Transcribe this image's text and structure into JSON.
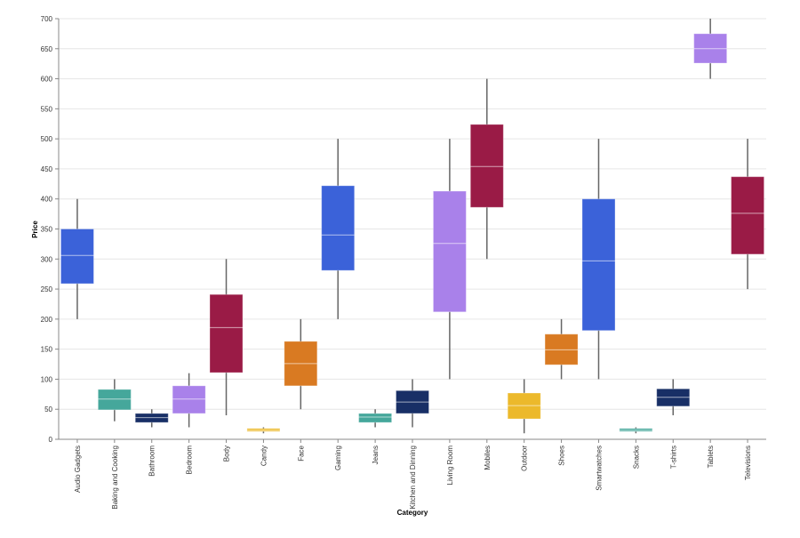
{
  "chart_data": {
    "type": "boxplot",
    "xlabel": "Category",
    "ylabel": "Price",
    "ylim": [
      0,
      700
    ],
    "yticks": [
      0,
      50,
      100,
      150,
      200,
      250,
      300,
      350,
      400,
      450,
      500,
      550,
      600,
      650,
      700
    ],
    "grid": true,
    "categories": [
      "Audio Gadgets",
      "Baking and Cooking",
      "Bathroom",
      "Bedroom",
      "Body",
      "Candy",
      "Face",
      "Gaming",
      "Jeans",
      "Kitchen and Dinning",
      "Living Room",
      "Mobiles",
      "Outdoor",
      "Shoes",
      "Smartwatches",
      "Snacks",
      "T-shirts",
      "Tablets",
      "Televisions"
    ],
    "boxes": [
      {
        "min": 200,
        "q1": 259,
        "median": 306,
        "q3": 350,
        "max": 400,
        "color": "#3b62d9"
      },
      {
        "min": 30,
        "q1": 49,
        "median": 67,
        "q3": 83,
        "max": 100,
        "color": "#45a79b"
      },
      {
        "min": 20,
        "q1": 28,
        "median": 36,
        "q3": 43,
        "max": 50,
        "color": "#182f66"
      },
      {
        "min": 20,
        "q1": 43,
        "median": 67,
        "q3": 89,
        "max": 110,
        "color": "#a981ea"
      },
      {
        "min": 40,
        "q1": 111,
        "median": 186,
        "q3": 241,
        "max": 300,
        "color": "#9a1b46"
      },
      {
        "min": 10,
        "q1": 13,
        "median": 15,
        "q3": 18,
        "max": 20,
        "color": "#ecb92b"
      },
      {
        "min": 50,
        "q1": 89,
        "median": 126,
        "q3": 163,
        "max": 200,
        "color": "#d97a22"
      },
      {
        "min": 200,
        "q1": 281,
        "median": 340,
        "q3": 422,
        "max": 500,
        "color": "#3b62d9"
      },
      {
        "min": 20,
        "q1": 28,
        "median": 37,
        "q3": 43,
        "max": 50,
        "color": "#45a79b"
      },
      {
        "min": 20,
        "q1": 43,
        "median": 62,
        "q3": 81,
        "max": 100,
        "color": "#182f66"
      },
      {
        "min": 100,
        "q1": 212,
        "median": 326,
        "q3": 413,
        "max": 500,
        "color": "#a981ea"
      },
      {
        "min": 300,
        "q1": 386,
        "median": 454,
        "q3": 524,
        "max": 600,
        "color": "#9a1b46"
      },
      {
        "min": 10,
        "q1": 34,
        "median": 56,
        "q3": 77,
        "max": 100,
        "color": "#ecb92b"
      },
      {
        "min": 100,
        "q1": 124,
        "median": 149,
        "q3": 175,
        "max": 200,
        "color": "#d97a22"
      },
      {
        "min": 100,
        "q1": 181,
        "median": 297,
        "q3": 400,
        "max": 500,
        "color": "#3b62d9"
      },
      {
        "min": 10,
        "q1": 13,
        "median": 15,
        "q3": 18,
        "max": 20,
        "color": "#45a79b"
      },
      {
        "min": 40,
        "q1": 55,
        "median": 70,
        "q3": 84,
        "max": 100,
        "color": "#182f66"
      },
      {
        "min": 600,
        "q1": 626,
        "median": 650,
        "q3": 675,
        "max": 700,
        "color": "#a981ea"
      },
      {
        "min": 250,
        "q1": 308,
        "median": 376,
        "q3": 437,
        "max": 500,
        "color": "#9a1b46"
      }
    ]
  }
}
